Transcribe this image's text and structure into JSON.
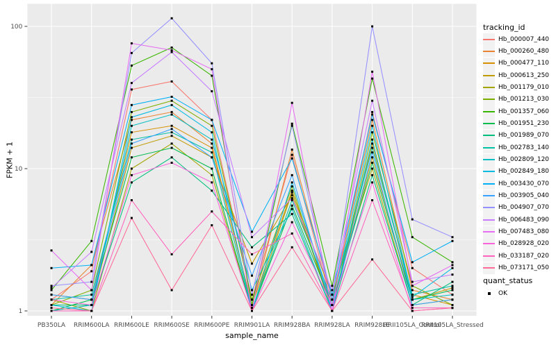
{
  "colors": {
    "panel_bg": "#EBEBEB",
    "grid_major": "#FFFFFF",
    "grid_minor": "#FFFFFF",
    "tick_mark": "#333333",
    "tick_text": "#4D4D4D",
    "axis_title": "#000000",
    "legend_key_bg": "#F2F2F2",
    "point": "#000000"
  },
  "legend": {
    "tracking_title": "tracking_id",
    "quant_title": "quant_status",
    "quant_items": [
      {
        "label": "OK",
        "marker": "black-square"
      }
    ]
  },
  "chart_data": {
    "type": "line",
    "title": "",
    "xlabel": "sample_name",
    "ylabel": "FPKM + 1",
    "y_scale": "log10",
    "ylim": [
      0.92,
      143
    ],
    "yticks_major": [
      1,
      10,
      100
    ],
    "ytick_labels": [
      "1",
      "10",
      "100"
    ],
    "yticks_minor": [
      3.162,
      31.62
    ],
    "grid": "on",
    "legend_position": "right",
    "point_marker": "filled-square",
    "categories": [
      "PB350LA",
      "RRIM600LA",
      "RRIM600LE",
      "RRIM600SE",
      "RRIM600PE",
      "RRIM901LA",
      "RRIM928BA",
      "RRIM928LA",
      "RRIM928LE",
      "RRII105LA_Control",
      "RRII105LA_Stressed"
    ],
    "series": [
      {
        "name": "Hb_000007_440",
        "color": "#F8766D",
        "values": [
          1.2,
          1.9,
          36,
          41,
          22,
          1.2,
          12.5,
          1.1,
          25,
          2.0,
          1.3
        ]
      },
      {
        "name": "Hb_000260_480",
        "color": "#EA8331",
        "values": [
          1.1,
          2.1,
          22,
          25,
          15,
          1.05,
          13.6,
          1.2,
          22,
          1.4,
          1.2
        ]
      },
      {
        "name": "Hb_000477_110",
        "color": "#D89000",
        "values": [
          1.3,
          1.2,
          18,
          20,
          14,
          1.1,
          7.0,
          1.0,
          15,
          1.3,
          1.1
        ]
      },
      {
        "name": "Hb_000613_250",
        "color": "#C09B00",
        "values": [
          1.0,
          1.1,
          14,
          17,
          12,
          2.15,
          6.5,
          1.1,
          12,
          1.2,
          1.45
        ]
      },
      {
        "name": "Hb_001179_010",
        "color": "#A3A500",
        "values": [
          1.2,
          1.0,
          10,
          15,
          9,
          1.0,
          6.8,
          1.3,
          10,
          1.1,
          1.2
        ]
      },
      {
        "name": "Hb_001213_030",
        "color": "#7CAE00",
        "values": [
          1.1,
          1.4,
          25,
          30,
          20,
          1.2,
          7.5,
          1.0,
          18,
          1.5,
          1.1
        ]
      },
      {
        "name": "Hb_001357_060",
        "color": "#39B600",
        "values": [
          1.4,
          3.1,
          53,
          71,
          45,
          1.1,
          20.7,
          1.5,
          43,
          3.3,
          2.2
        ]
      },
      {
        "name": "Hb_001951_230",
        "color": "#00BB4E",
        "values": [
          1.0,
          1.2,
          12,
          14,
          10,
          1.0,
          5.5,
          1.1,
          11,
          1.2,
          1.4
        ]
      },
      {
        "name": "Hb_001989_070",
        "color": "#00BF7D",
        "values": [
          1.1,
          1.1,
          8,
          12,
          7,
          2.8,
          4.8,
          1.0,
          9,
          1.1,
          1.6
        ]
      },
      {
        "name": "Hb_002783_140",
        "color": "#00C1A3",
        "values": [
          1.2,
          1.3,
          16,
          18,
          13,
          1.0,
          6.0,
          1.2,
          14,
          1.3,
          1.5
        ]
      },
      {
        "name": "Hb_002809_120",
        "color": "#00BFC4",
        "values": [
          1.0,
          1.1,
          20,
          24,
          16,
          1.4,
          5.2,
          1.0,
          16,
          1.2,
          1.3
        ]
      },
      {
        "name": "Hb_002849_180",
        "color": "#00BAE0",
        "values": [
          1.1,
          1.0,
          23,
          28,
          18,
          1.0,
          8.0,
          1.1,
          20,
          1.25,
          2.0
        ]
      },
      {
        "name": "Hb_003430_070",
        "color": "#00B0F6",
        "values": [
          2.0,
          2.1,
          28,
          32,
          22,
          3.6,
          11.8,
          1.3,
          24,
          2.2,
          3.1
        ]
      },
      {
        "name": "Hb_003905_040",
        "color": "#35A2FF",
        "values": [
          1.3,
          1.2,
          15,
          19,
          12,
          1.77,
          9.0,
          1.0,
          13,
          1.1,
          1.2
        ]
      },
      {
        "name": "Hb_004907_070",
        "color": "#9590FF",
        "values": [
          1.5,
          1.6,
          65,
          114,
          55,
          1.3,
          20.0,
          1.2,
          100,
          4.4,
          3.3
        ]
      },
      {
        "name": "Hb_006483_090",
        "color": "#C77CFF",
        "values": [
          1.45,
          2.6,
          40,
          66,
          35,
          3.3,
          6.2,
          1.4,
          30,
          1.6,
          1.8
        ]
      },
      {
        "name": "Hb_007483_080",
        "color": "#E76BF3",
        "values": [
          2.66,
          1.4,
          76,
          68,
          50,
          1.0,
          29.0,
          1.0,
          48,
          1.5,
          2.1
        ]
      },
      {
        "name": "Hb_028928_020",
        "color": "#FA62DB",
        "values": [
          1.2,
          1.1,
          9,
          11,
          8,
          1.0,
          4.2,
          1.1,
          8,
          1.0,
          1.05
        ]
      },
      {
        "name": "Hb_033187_020",
        "color": "#FF62BC",
        "values": [
          1.0,
          1.0,
          6,
          2.5,
          5,
          2.5,
          3.5,
          1.0,
          6,
          1.05,
          1.05
        ]
      },
      {
        "name": "Hb_073171_050",
        "color": "#FF6A98",
        "values": [
          1.05,
          1.0,
          4.5,
          1.4,
          4.0,
          1.0,
          2.8,
          1.0,
          2.3,
          1.0,
          1.05
        ]
      }
    ]
  }
}
